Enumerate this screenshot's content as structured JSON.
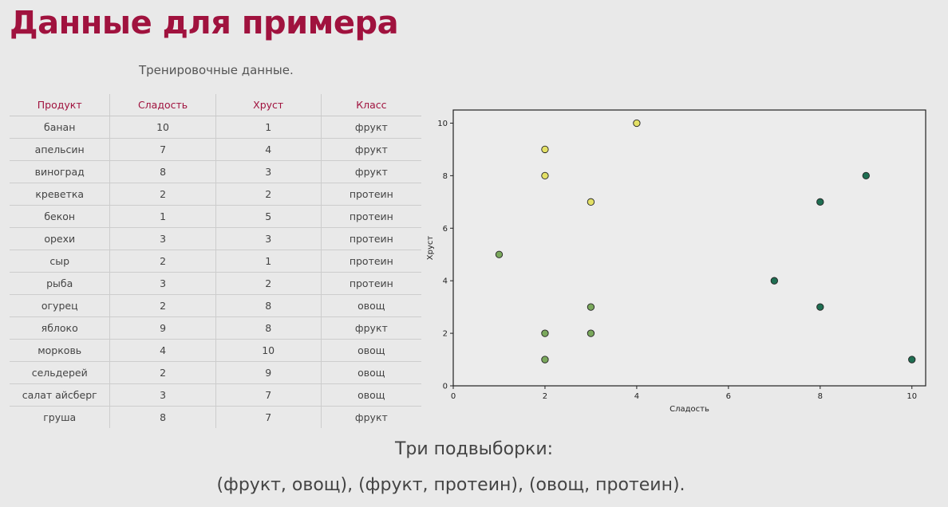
{
  "slide": {
    "title": "Данные для примера",
    "caption": "Тренировочные данные.",
    "subtitle": "Три подвыборки:",
    "pairs": "(фрукт, овощ), (фрукт, протеин), (овощ, протеин)."
  },
  "table": {
    "headers": [
      "Продукт",
      "Сладость",
      "Хруст",
      "Класс"
    ],
    "rows": [
      [
        "банан",
        "10",
        "1",
        "фрукт"
      ],
      [
        "апельсин",
        "7",
        "4",
        "фрукт"
      ],
      [
        "виноград",
        "8",
        "3",
        "фрукт"
      ],
      [
        "креветка",
        "2",
        "2",
        "протеин"
      ],
      [
        "бекон",
        "1",
        "5",
        "протеин"
      ],
      [
        "орехи",
        "3",
        "3",
        "протеин"
      ],
      [
        "сыр",
        "2",
        "1",
        "протеин"
      ],
      [
        "рыба",
        "3",
        "2",
        "протеин"
      ],
      [
        "огурец",
        "2",
        "8",
        "овощ"
      ],
      [
        "яблоко",
        "9",
        "8",
        "фрукт"
      ],
      [
        "морковь",
        "4",
        "10",
        "овощ"
      ],
      [
        "сельдерей",
        "2",
        "9",
        "овощ"
      ],
      [
        "салат айсберг",
        "3",
        "7",
        "овощ"
      ],
      [
        "груша",
        "8",
        "7",
        "фрукт"
      ]
    ]
  },
  "chart_data": {
    "type": "scatter",
    "xlabel": "Сладость",
    "ylabel": "Хруст",
    "xlim": [
      0,
      10.3
    ],
    "ylim": [
      0,
      10.5
    ],
    "xticks": [
      0,
      2,
      4,
      6,
      8,
      10
    ],
    "yticks": [
      0,
      2,
      4,
      6,
      8,
      10
    ],
    "grid": false,
    "points": [
      {
        "x": 10,
        "y": 1,
        "class": "фрукт"
      },
      {
        "x": 7,
        "y": 4,
        "class": "фрукт"
      },
      {
        "x": 8,
        "y": 3,
        "class": "фрукт"
      },
      {
        "x": 9,
        "y": 8,
        "class": "фрукт"
      },
      {
        "x": 8,
        "y": 7,
        "class": "фрукт"
      },
      {
        "x": 2,
        "y": 2,
        "class": "протеин"
      },
      {
        "x": 1,
        "y": 5,
        "class": "протеин"
      },
      {
        "x": 3,
        "y": 3,
        "class": "протеин"
      },
      {
        "x": 2,
        "y": 1,
        "class": "протеин"
      },
      {
        "x": 3,
        "y": 2,
        "class": "протеин"
      },
      {
        "x": 2,
        "y": 8,
        "class": "овощ"
      },
      {
        "x": 4,
        "y": 10,
        "class": "овощ"
      },
      {
        "x": 2,
        "y": 9,
        "class": "овощ"
      },
      {
        "x": 3,
        "y": 7,
        "class": "овощ"
      }
    ],
    "class_colors": {
      "фрукт": "#1f6e52",
      "протеин": "#7aa85c",
      "овощ": "#e3e066"
    }
  }
}
